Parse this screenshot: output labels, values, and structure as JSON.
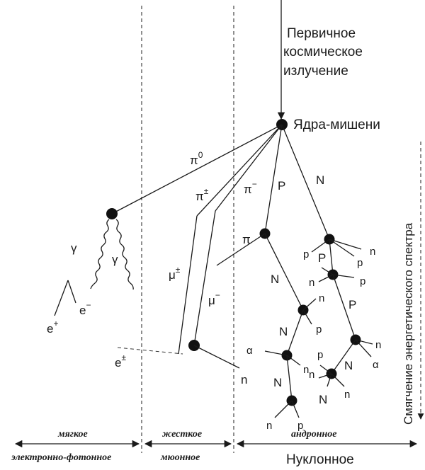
{
  "labels": {
    "primary_line1": "Первичное",
    "primary_line2": "космическое",
    "primary_line3": "излучение",
    "target": "Ядра-мишени",
    "vertical": "Смягчение энергетического спектра",
    "pi0": "π",
    "pi0_sup": "0",
    "pi_pm": "π",
    "pi_pm_sup": "±",
    "pi_minus": "π",
    "pi_minus_sup": "−",
    "mu_pm": "μ",
    "mu_pm_sup": "±",
    "mu_minus": "μ",
    "mu_minus_sup": "−",
    "gamma": "γ",
    "e_plus": "e",
    "e_plus_sup": "+",
    "e_minus": "e",
    "e_minus_sup": "−",
    "e_pm": "e",
    "e_pm_sup": "±",
    "P": "P",
    "N": "N",
    "p": "p",
    "n": "n",
    "pi": "π",
    "alpha": "α"
  },
  "components": {
    "soft_line1": "мягкое",
    "soft_line2": "электронно-фотонное",
    "hard_line1": "жесткое",
    "hard_line2": "мюонное",
    "nucleon_line1": "андронное",
    "nucleon_line2": "Нуклонное"
  }
}
